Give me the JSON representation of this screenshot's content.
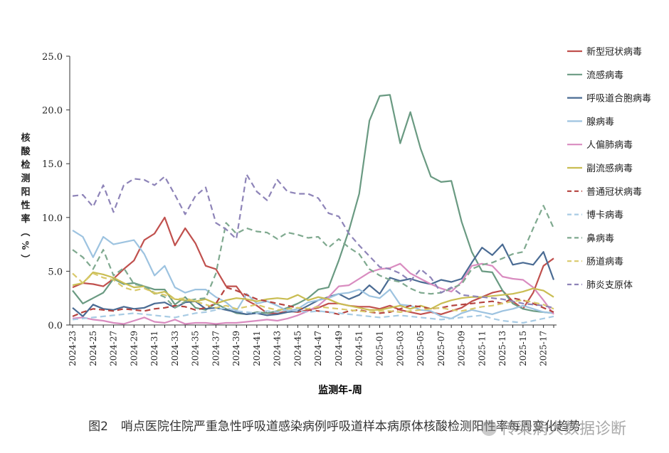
{
  "chart_data": {
    "type": "line",
    "ylabel": "核酸检测阳性率（%）",
    "xlabel": "监测年-周",
    "ylim": [
      0,
      25
    ],
    "yticks": [
      "0.0",
      "5.0",
      "10.0",
      "15.0",
      "20.0",
      "25.0"
    ],
    "x": [
      "2024-23",
      "2024-24",
      "2024-25",
      "2024-26",
      "2024-27",
      "2024-28",
      "2024-29",
      "2024-30",
      "2024-31",
      "2024-32",
      "2024-33",
      "2024-34",
      "2024-35",
      "2024-36",
      "2024-37",
      "2024-38",
      "2024-39",
      "2024-40",
      "2024-41",
      "2024-42",
      "2024-43",
      "2024-44",
      "2024-45",
      "2024-46",
      "2024-47",
      "2024-48",
      "2024-49",
      "2024-50",
      "2024-51",
      "2024-52",
      "2025-01",
      "2025-02",
      "2025-03",
      "2025-04",
      "2025-05",
      "2025-06",
      "2025-07",
      "2025-08",
      "2025-09",
      "2025-10",
      "2025-11",
      "2025-12",
      "2025-13",
      "2025-14",
      "2025-15",
      "2025-16",
      "2025-17",
      "2025-18"
    ],
    "xtick_labels": [
      "2024-23",
      "2024-25",
      "2024-27",
      "2024-29",
      "2024-31",
      "2024-33",
      "2024-35",
      "2024-37",
      "2024-39",
      "2024-41",
      "2024-43",
      "2024-45",
      "2024-47",
      "2024-49",
      "2024-51",
      "2025-01",
      "2025-03",
      "2025-05",
      "2025-07",
      "2025-09",
      "2025-11",
      "2025-13",
      "2025-15",
      "2025-17"
    ],
    "legend_position": "right",
    "series": [
      {
        "name": "新型冠状病毒",
        "color": "#c0504d",
        "dash": false,
        "values": [
          3.5,
          3.9,
          3.8,
          3.6,
          4.3,
          5.2,
          6.0,
          7.9,
          8.5,
          10.0,
          7.4,
          9.0,
          7.6,
          5.5,
          5.2,
          3.6,
          3.6,
          2.3,
          1.8,
          1.1,
          1.1,
          1.3,
          1.2,
          1.4,
          1.6,
          2.0,
          2.0,
          1.8,
          1.7,
          1.7,
          1.5,
          1.8,
          1.4,
          1.2,
          1.0,
          1.2,
          1.0,
          1.3,
          1.6,
          2.2,
          2.6,
          3.0,
          3.2,
          2.2,
          1.5,
          3.0,
          5.5,
          6.2
        ]
      },
      {
        "name": "流感病毒",
        "color": "#6a9a82",
        "dash": false,
        "values": [
          3.2,
          2.0,
          2.5,
          3.0,
          4.3,
          3.8,
          3.9,
          3.6,
          3.3,
          3.3,
          1.9,
          2.6,
          1.6,
          1.4,
          2.0,
          1.5,
          1.1,
          1.0,
          1.2,
          1.1,
          1.3,
          1.6,
          2.0,
          2.5,
          3.3,
          3.5,
          6.0,
          8.8,
          12.2,
          19.0,
          21.3,
          21.4,
          16.9,
          19.8,
          16.4,
          13.8,
          13.3,
          13.4,
          9.6,
          6.8,
          5.0,
          4.9,
          3.2,
          2.0,
          1.5,
          1.3,
          1.2,
          1.1
        ]
      },
      {
        "name": "呼吸道合胞病毒",
        "color": "#4a6b93",
        "dash": false,
        "values": [
          1.6,
          0.8,
          1.9,
          1.5,
          1.4,
          1.7,
          1.5,
          1.6,
          2.0,
          2.1,
          1.6,
          2.1,
          2.2,
          1.5,
          1.6,
          1.4,
          1.2,
          1.0,
          1.1,
          0.9,
          1.0,
          1.2,
          1.3,
          1.8,
          2.3,
          2.6,
          2.9,
          2.4,
          2.8,
          3.7,
          2.9,
          4.4,
          4.1,
          4.3,
          4.0,
          3.8,
          4.2,
          4.0,
          4.3,
          5.8,
          7.2,
          6.5,
          7.5,
          5.6,
          5.8,
          5.6,
          6.8,
          4.2
        ]
      },
      {
        "name": "腺病毒",
        "color": "#9dc3e0",
        "dash": false,
        "values": [
          8.8,
          8.2,
          6.3,
          8.2,
          7.5,
          7.7,
          7.9,
          6.6,
          4.6,
          5.5,
          3.5,
          3.0,
          3.3,
          3.3,
          2.6,
          2.1,
          1.3,
          2.9,
          2.0,
          2.2,
          1.8,
          1.3,
          1.5,
          2.1,
          2.3,
          2.5,
          2.9,
          3.0,
          3.3,
          2.7,
          2.5,
          3.3,
          1.9,
          1.8,
          1.4,
          1.3,
          0.8,
          0.6,
          1.1,
          1.4,
          1.2,
          1.0,
          1.3,
          1.5,
          1.8,
          1.5,
          1.2,
          1.1
        ]
      },
      {
        "name": "人偏肺病毒",
        "color": "#d98cc0",
        "dash": false,
        "values": [
          0.6,
          0.7,
          0.5,
          0.4,
          0.2,
          0.1,
          0.4,
          0.7,
          0.3,
          0.2,
          0.5,
          0.1,
          0.2,
          0.2,
          0.1,
          0.2,
          0.2,
          0.3,
          0.4,
          0.5,
          0.4,
          0.6,
          0.9,
          1.3,
          1.8,
          2.6,
          3.6,
          3.7,
          4.3,
          4.9,
          5.2,
          5.3,
          5.7,
          4.8,
          4.3,
          3.8,
          3.4,
          3.1,
          4.0,
          5.5,
          5.7,
          5.5,
          4.5,
          4.3,
          4.2,
          3.5,
          2.3,
          1.0
        ]
      },
      {
        "name": "副流感病毒",
        "color": "#c9bd52",
        "dash": false,
        "values": [
          3.7,
          3.9,
          4.9,
          4.7,
          4.4,
          3.9,
          3.5,
          3.6,
          2.9,
          3.1,
          2.4,
          2.3,
          2.2,
          2.4,
          2.0,
          2.3,
          2.5,
          2.4,
          2.2,
          2.4,
          2.5,
          2.4,
          2.8,
          2.3,
          2.6,
          2.4,
          2.0,
          1.8,
          1.6,
          1.4,
          1.4,
          1.6,
          1.8,
          1.5,
          1.8,
          1.5,
          2.0,
          2.3,
          2.5,
          2.6,
          2.6,
          2.7,
          2.8,
          2.9,
          3.1,
          3.4,
          3.2,
          2.6
        ]
      },
      {
        "name": "普通冠状病毒",
        "color": "#b5433f",
        "dash": true,
        "values": [
          0.8,
          1.2,
          1.5,
          1.4,
          1.3,
          1.5,
          1.4,
          1.3,
          1.5,
          1.6,
          1.8,
          1.7,
          1.4,
          1.6,
          2.0,
          3.5,
          3.2,
          2.8,
          2.4,
          2.2,
          2.0,
          1.8,
          1.6,
          1.4,
          1.3,
          1.2,
          1.0,
          1.3,
          1.4,
          1.2,
          1.1,
          1.2,
          1.5,
          1.8,
          1.7,
          1.5,
          1.6,
          1.8,
          1.9,
          2.0,
          2.1,
          2.2,
          2.0,
          2.5,
          2.3,
          2.0,
          1.6,
          1.2
        ]
      },
      {
        "name": "博卡病毒",
        "color": "#a8cbe4",
        "dash": true,
        "values": [
          0.5,
          0.6,
          0.7,
          0.8,
          0.9,
          1.0,
          1.1,
          1.0,
          0.9,
          0.8,
          0.7,
          0.9,
          1.1,
          1.2,
          1.4,
          1.6,
          1.3,
          1.2,
          1.1,
          1.3,
          1.2,
          1.4,
          1.3,
          1.2,
          1.3,
          1.2,
          1.1,
          1.0,
          0.9,
          0.8,
          0.7,
          0.8,
          0.9,
          0.8,
          0.7,
          0.6,
          0.5,
          0.6,
          0.7,
          0.8,
          0.9,
          0.6,
          0.4,
          0.3,
          0.2,
          0.4,
          0.6,
          0.8
        ]
      },
      {
        "name": "鼻病毒",
        "color": "#7fa98f",
        "dash": true,
        "values": [
          7.0,
          6.3,
          5.2,
          7.0,
          4.6,
          5.3,
          3.8,
          3.6,
          3.0,
          2.6,
          1.6,
          2.2,
          2.4,
          2.5,
          4.8,
          9.5,
          8.5,
          9.0,
          8.7,
          8.6,
          8.0,
          8.6,
          8.4,
          8.1,
          8.2,
          7.2,
          8.0,
          7.2,
          6.6,
          5.2,
          4.6,
          4.2,
          4.0,
          3.4,
          3.0,
          2.9,
          3.0,
          3.4,
          3.8,
          5.2,
          5.6,
          5.8,
          6.2,
          6.6,
          6.8,
          9.0,
          11.1,
          9.0
        ]
      },
      {
        "name": "肠道病毒",
        "color": "#d9c96b",
        "dash": true,
        "values": [
          4.8,
          3.9,
          4.8,
          4.4,
          4.2,
          3.5,
          3.2,
          3.4,
          3.0,
          2.8,
          2.4,
          2.5,
          2.2,
          1.9,
          1.6,
          1.8,
          1.5,
          1.7,
          1.9,
          1.6,
          1.4,
          1.5,
          1.6,
          1.5,
          1.7,
          1.6,
          1.5,
          1.4,
          1.3,
          1.2,
          1.3,
          1.3,
          1.2,
          1.3,
          1.4,
          1.5,
          1.6,
          1.4,
          1.3,
          1.5,
          1.7,
          1.8,
          2.0,
          2.2,
          2.3,
          2.1,
          1.9,
          1.5
        ]
      },
      {
        "name": "肺炎支原体",
        "color": "#8e84b8",
        "dash": true,
        "values": [
          12.0,
          12.1,
          11.0,
          13.0,
          10.5,
          13.0,
          13.6,
          13.5,
          13.0,
          13.8,
          12.1,
          10.3,
          12.0,
          12.8,
          9.5,
          8.9,
          8.0,
          14.0,
          12.4,
          11.6,
          13.5,
          12.4,
          12.2,
          12.2,
          11.8,
          10.4,
          10.1,
          8.5,
          7.4,
          6.4,
          5.4,
          5.2,
          4.8,
          4.1,
          5.2,
          4.4,
          3.0,
          3.5,
          2.8,
          2.7,
          2.6,
          2.5,
          2.4,
          2.2,
          2.0,
          1.9,
          1.8,
          1.6
        ]
      }
    ]
  },
  "caption": {
    "figure_no": "图2",
    "text": "哨点医院住院严重急性呼吸道感染病例呼吸道样本病原体核酸检测阳性率每周变化趋势"
  },
  "watermark": "传染病大数据诊断"
}
